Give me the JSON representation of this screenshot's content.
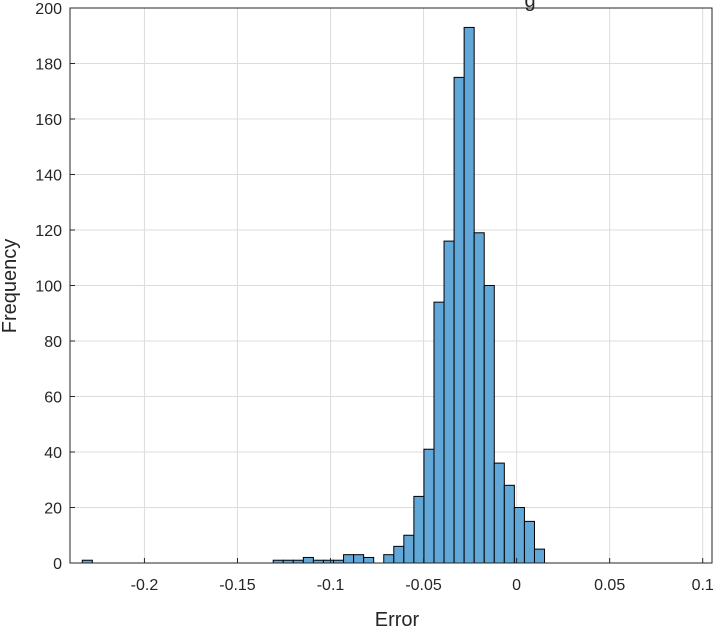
{
  "chart_data": {
    "type": "bar",
    "title_fragment": "g",
    "xlabel": "Error",
    "ylabel": "Frequency",
    "xlim": [
      -0.24,
      0.105
    ],
    "ylim": [
      0,
      200
    ],
    "grid": true,
    "x_ticks": [
      {
        "value": -0.2,
        "label": "-0.2"
      },
      {
        "value": -0.15,
        "label": "-0.15"
      },
      {
        "value": -0.1,
        "label": "-0.1"
      },
      {
        "value": -0.05,
        "label": "-0.05"
      },
      {
        "value": 0,
        "label": "0"
      },
      {
        "value": 0.05,
        "label": "0.05"
      },
      {
        "value": 0.1,
        "label": "0.1"
      }
    ],
    "y_ticks": [
      {
        "value": 0,
        "label": "0"
      },
      {
        "value": 20,
        "label": "20"
      },
      {
        "value": 40,
        "label": "40"
      },
      {
        "value": 60,
        "label": "60"
      },
      {
        "value": 80,
        "label": "80"
      },
      {
        "value": 100,
        "label": "100"
      },
      {
        "value": 120,
        "label": "120"
      },
      {
        "value": 140,
        "label": "140"
      },
      {
        "value": 160,
        "label": "160"
      },
      {
        "value": 180,
        "label": "180"
      },
      {
        "value": 200,
        "label": "200"
      }
    ],
    "bin_width": 0.0054,
    "bin_start": -0.2334,
    "counts": [
      1,
      0,
      0,
      0,
      0,
      0,
      0,
      0,
      0,
      0,
      0,
      0,
      0,
      0,
      0,
      0,
      0,
      0,
      0,
      1,
      1,
      1,
      2,
      1,
      1,
      1,
      3,
      3,
      2,
      0,
      3,
      6,
      10,
      24,
      41,
      94,
      116,
      175,
      193,
      119,
      100,
      36,
      28,
      20,
      15,
      5
    ],
    "colors": {
      "bar_fill": "#61a7d8",
      "bar_edge": "#000000",
      "grid": "#dcdcdc",
      "axis": "#262626"
    }
  }
}
